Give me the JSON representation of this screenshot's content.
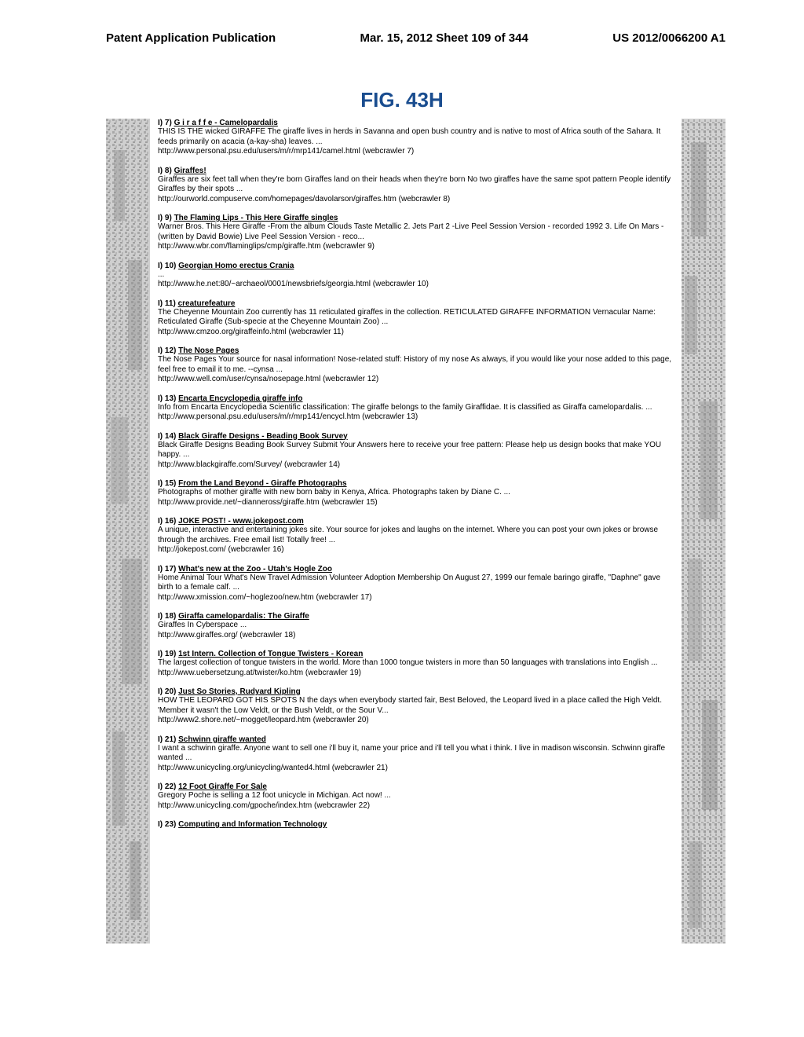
{
  "header": {
    "left": "Patent Application Publication",
    "center": "Mar. 15, 2012  Sheet 109 of 344",
    "right": "US 2012/0066200 A1"
  },
  "figure_title": "FIG. 43H",
  "results": [
    {
      "num": "I) 7)",
      "title": "G i r a f f e - Camelopardalis",
      "desc": "THIS IS THE wicked GIRAFFE The giraffe lives in herds in Savanna and open bush country and is native to most of Africa south of the Sahara. It feeds primarily on acacia (a-kay-sha) leaves. ...",
      "url": "http://www.personal.psu.edu/users/m/r/mrp141/camel.html   (webcrawler  7)"
    },
    {
      "num": "I) 8)",
      "title": "Giraffes!",
      "desc": "Giraffes are six feet tall when they're born Giraffes land on their heads when they're born No two giraffes have the same spot pattern People identify Giraffes by their spots ...",
      "url": "http://ourworld.compuserve.com/homepages/davolarson/giraffes.htm   (webcrawler  8)"
    },
    {
      "num": "I) 9)",
      "title": "The Flaming Lips - This Here Giraffe singles",
      "desc": "Warner Bros. This Here Giraffe -From the album Clouds Taste Metallic 2. Jets Part 2 -Live Peel Session Version - recorded 1992 3. Life On Mars -(written by David Bowie) Live Peel Session Version - reco...",
      "url": "http://www.wbr.com/flaminglips/cmp/giraffe.htm   (webcrawler  9)"
    },
    {
      "num": "I) 10)",
      "title": "Georgian Homo erectus Crania",
      "desc": "...",
      "url": "http://www.he.net:80/~archaeol/0001/newsbriefs/georgia.html   (webcrawler  10)"
    },
    {
      "num": "I) 11)",
      "title": "creaturefeature",
      "desc": "The Cheyenne Mountain Zoo currently has 11 reticulated giraffes in the collection. RETICULATED GIRAFFE INFORMATION Vernacular Name: Reticulated Giraffe (Sub-specie at the Cheyenne Mountain Zoo) ...",
      "url": "http://www.cmzoo.org/giraffeinfo.html   (webcrawler  11)"
    },
    {
      "num": "I) 12)",
      "title": "The Nose Pages",
      "desc": "The Nose Pages Your source for nasal information! Nose-related stuff: History of my nose As always, if you would like your nose added to this page, feel free to email it to me. --cynsa ...",
      "url": "http://www.well.com/user/cynsa/nosepage.html   (webcrawler  12)"
    },
    {
      "num": "I) 13)",
      "title": "Encarta Encyclopedia giraffe info",
      "desc": "Info from Encarta Encyclopedia Scientific classification: The giraffe belongs to the family Giraffidae. It is classified as Giraffa camelopardalis. ...",
      "url": "http://www.personal.psu.edu/users/m/r/mrp141/encycl.htm   (webcrawler  13)"
    },
    {
      "num": "I) 14)",
      "title": "Black Giraffe Designs - Beading Book Survey",
      "desc": "Black Giraffe Designs Beading Book Survey Submit Your Answers here to receive your free pattern: Please help us design books that make YOU happy. ...",
      "url": "http://www.blackgiraffe.com/Survey/   (webcrawler  14)"
    },
    {
      "num": "I) 15)",
      "title": "From the Land Beyond - Giraffe Photographs",
      "desc": "Photographs of mother giraffe with new born baby in Kenya, Africa. Photographs taken by Diane C. ...",
      "url": "http://www.provide.net/~dianneross/giraffe.htm   (webcrawler  15)"
    },
    {
      "num": "I) 16)",
      "title": "JOKE POST! - www.jokepost.com",
      "desc": "A unique, interactive and entertaining jokes site. Your source for jokes and laughs on the internet. Where you can post your own jokes or browse through the archives. Free email list! Totally free! ...",
      "url": "http://jokepost.com/   (webcrawler  16)"
    },
    {
      "num": "I) 17)",
      "title": "What's new at the Zoo - Utah's Hogle Zoo",
      "desc": "Home Animal Tour What's New Travel Admission Volunteer Adoption Membership On August 27, 1999 our female baringo giraffe, \"Daphne\" gave birth to a female calf. ...",
      "url": "http://www.xmission.com/~hoglezoo/new.htm   (webcrawler  17)"
    },
    {
      "num": "I) 18)",
      "title": "Giraffa camelopardalis: The Giraffe",
      "desc": "Giraffes In Cyberspace ...",
      "url": "http://www.giraffes.org/   (webcrawler  18)"
    },
    {
      "num": "I) 19)",
      "title": "1st Intern. Collection of Tongue Twisters - Korean",
      "desc": "The largest collection of tongue twisters in the world. More than 1000 tongue twisters in more than 50 languages with translations into English ...",
      "url": "http://www.uebersetzung.at/twister/ko.htm   (webcrawler  19)"
    },
    {
      "num": "I) 20)",
      "title": "Just So Stories, Rudyard Kipling",
      "desc": "HOW THE LEOPARD GOT HIS SPOTS N the days when everybody started fair, Best Beloved, the Leopard lived in a place called the High Veldt. 'Member it wasn't the Low Veldt, or the Bush Veldt, or the Sour V...",
      "url": "http://www2.shore.net/~rnogget/leopard.htm   (webcrawler  20)"
    },
    {
      "num": "I) 21)",
      "title": "Schwinn giraffe wanted",
      "desc": "I want a schwinn giraffe. Anyone want to sell one i'll buy it, name your price and i'll tell you what i think. I live in madison wisconsin. Schwinn giraffe wanted ...",
      "url": "http://www.unicycling.org/unicycling/wanted4.html   (webcrawler  21)"
    },
    {
      "num": "I) 22)",
      "title": "12 Foot Giraffe For Sale",
      "desc": "Gregory Poche is selling a 12 foot unicycle in Michigan. Act now! ...",
      "url": "http://www.unicycling.com/gpoche/index.htm   (webcrawler  22)"
    },
    {
      "num": "I) 23)",
      "title": "Computing and Information Technology",
      "desc": "",
      "url": ""
    }
  ],
  "colors": {
    "title": "#1a4d8f",
    "text": "#000000",
    "bg": "#ffffff",
    "strip_light": "#d8d8d8",
    "strip_dark": "#9a9a9a"
  }
}
